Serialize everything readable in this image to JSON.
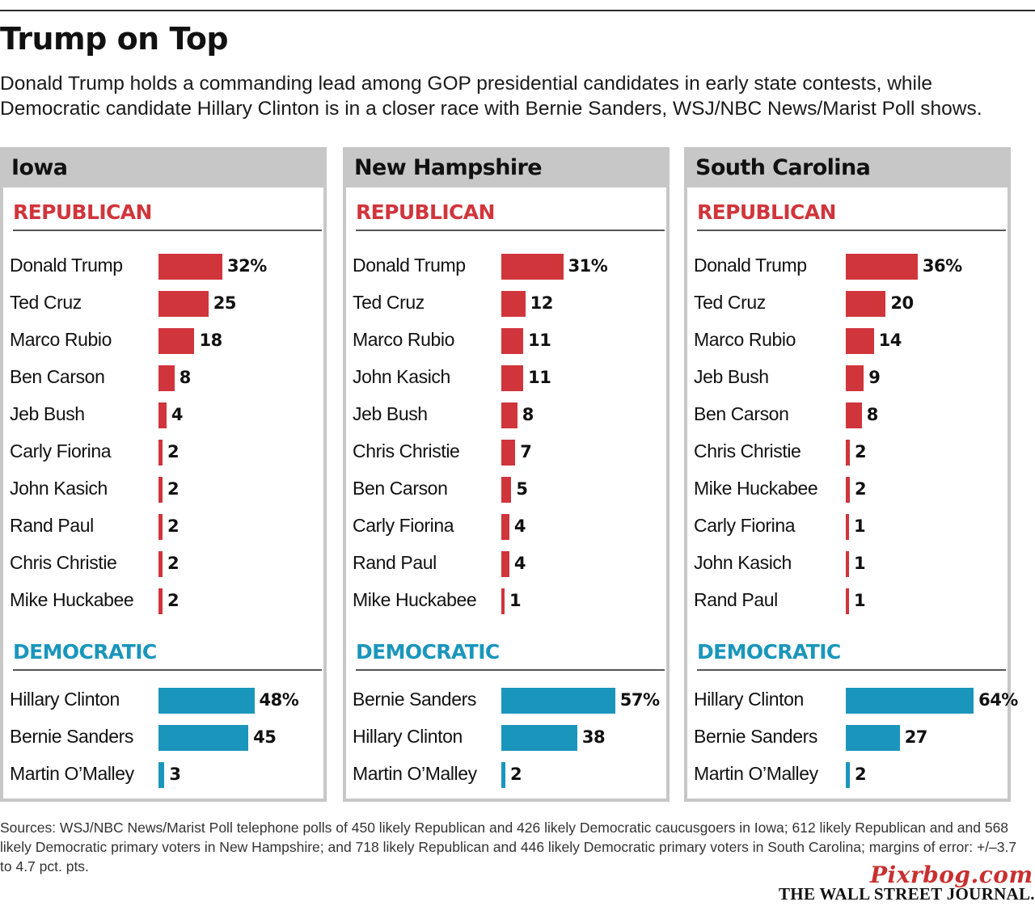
{
  "title": "Trump on Top",
  "subtitle": "Donald Trump holds a commanding lead among GOP presidential candidates in early state contests, while Democratic candidate Hillary Clinton is in a closer race with Bernie Sanders, WSJ/NBC News/Marist Poll shows.",
  "sources": "Sources: WSJ/NBC News/Marist Poll telephone polls of 450 likely Republican and 426 likely Democratic caucusgoers in Iowa; 612 likely Republican and and 568 likely Democratic primary voters in New Hampshire; and 718 likely Republican and 446 likely Democratic primary voters in South Carolina; margins of error: +/–3.7 to 4.7 pct. pts.",
  "watermark": "Pixrbog.com",
  "publisher": "THE WALL STREET JOURNAL.",
  "colors": {
    "republican": "#d0353b",
    "democratic": "#1a96bc",
    "panel_border": "#c7c7c7"
  },
  "chart_data": [
    {
      "type": "bar",
      "title": "Iowa",
      "unit": "%",
      "republican_label": "REPUBLICAN",
      "democratic_label": "DEMOCRATIC",
      "republican": [
        {
          "name": "Donald Trump",
          "value": 32,
          "label": "32%"
        },
        {
          "name": "Ted Cruz",
          "value": 25,
          "label": "25"
        },
        {
          "name": "Marco Rubio",
          "value": 18,
          "label": "18"
        },
        {
          "name": "Ben Carson",
          "value": 8,
          "label": "8"
        },
        {
          "name": "Jeb Bush",
          "value": 4,
          "label": "4"
        },
        {
          "name": "Carly Fiorina",
          "value": 2,
          "label": "2"
        },
        {
          "name": "John Kasich",
          "value": 2,
          "label": "2"
        },
        {
          "name": "Rand Paul",
          "value": 2,
          "label": "2"
        },
        {
          "name": "Chris Christie",
          "value": 2,
          "label": "2"
        },
        {
          "name": "Mike Huckabee",
          "value": 2,
          "label": "2"
        }
      ],
      "democratic": [
        {
          "name": "Hillary Clinton",
          "value": 48,
          "label": "48%"
        },
        {
          "name": "Bernie Sanders",
          "value": 45,
          "label": "45"
        },
        {
          "name": "Martin O’Malley",
          "value": 3,
          "label": "3"
        }
      ]
    },
    {
      "type": "bar",
      "title": "New Hampshire",
      "unit": "%",
      "republican_label": "REPUBLICAN",
      "democratic_label": "DEMOCRATIC",
      "republican": [
        {
          "name": "Donald Trump",
          "value": 31,
          "label": "31%"
        },
        {
          "name": "Ted Cruz",
          "value": 12,
          "label": "12"
        },
        {
          "name": "Marco Rubio",
          "value": 11,
          "label": "11"
        },
        {
          "name": "John Kasich",
          "value": 11,
          "label": "11"
        },
        {
          "name": "Jeb Bush",
          "value": 8,
          "label": "8"
        },
        {
          "name": "Chris Christie",
          "value": 7,
          "label": "7"
        },
        {
          "name": "Ben Carson",
          "value": 5,
          "label": "5"
        },
        {
          "name": "Carly Fiorina",
          "value": 4,
          "label": "4"
        },
        {
          "name": "Rand Paul",
          "value": 4,
          "label": "4"
        },
        {
          "name": "Mike Huckabee",
          "value": 1,
          "label": "1"
        }
      ],
      "democratic": [
        {
          "name": "Bernie Sanders",
          "value": 57,
          "label": "57%"
        },
        {
          "name": "Hillary Clinton",
          "value": 38,
          "label": "38"
        },
        {
          "name": "Martin O’Malley",
          "value": 2,
          "label": "2"
        }
      ]
    },
    {
      "type": "bar",
      "title": "South Carolina",
      "unit": "%",
      "republican_label": "REPUBLICAN",
      "democratic_label": "DEMOCRATIC",
      "republican": [
        {
          "name": "Donald Trump",
          "value": 36,
          "label": "36%"
        },
        {
          "name": "Ted Cruz",
          "value": 20,
          "label": "20"
        },
        {
          "name": "Marco Rubio",
          "value": 14,
          "label": "14"
        },
        {
          "name": "Jeb Bush",
          "value": 9,
          "label": "9"
        },
        {
          "name": "Ben Carson",
          "value": 8,
          "label": "8"
        },
        {
          "name": "Chris Christie",
          "value": 2,
          "label": "2"
        },
        {
          "name": "Mike Huckabee",
          "value": 2,
          "label": "2"
        },
        {
          "name": "Carly Fiorina",
          "value": 1,
          "label": "1"
        },
        {
          "name": "John Kasich",
          "value": 1,
          "label": "1"
        },
        {
          "name": "Rand Paul",
          "value": 1,
          "label": "1"
        }
      ],
      "democratic": [
        {
          "name": "Hillary Clinton",
          "value": 64,
          "label": "64%"
        },
        {
          "name": "Bernie Sanders",
          "value": 27,
          "label": "27"
        },
        {
          "name": "Martin O’Malley",
          "value": 2,
          "label": "2"
        }
      ]
    }
  ]
}
